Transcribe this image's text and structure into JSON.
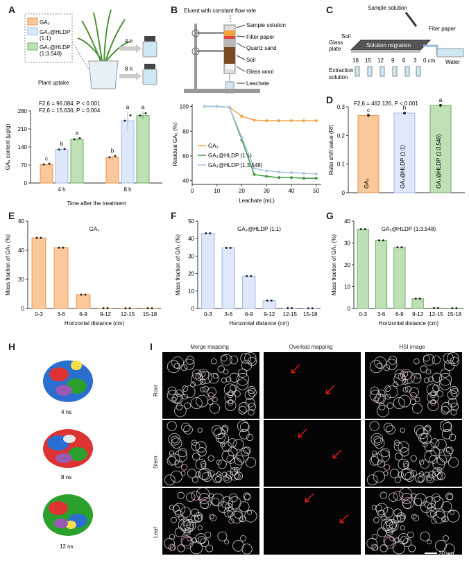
{
  "panels": {
    "A": {
      "letter": "A",
      "legend": [
        "GA₃",
        "GA₃@HLDP\n(1:1)",
        "GA₃@HLDP\n(1:3.548)"
      ],
      "plant_caption": "Plant uptake",
      "vial_times": [
        "4 h",
        "8 h"
      ],
      "stats": [
        "F2,6 = 96.084, P < 0.001",
        "F2,6 = 15.630, P = 0.004"
      ],
      "colors": {
        "ga3": "#f9c89b",
        "hldp11": "#dfe8fb",
        "hldp13": "#bfe0b4",
        "ga3_edge": "#e8944f",
        "hldp11_edge": "#9fb8e8",
        "hldp13_edge": "#6fae6a"
      }
    },
    "B": {
      "letter": "B",
      "apparatus": {
        "top": "Eluent with constant flow rate",
        "labels": [
          "Sample solution",
          "Filter paper",
          "Quartz sand",
          "Soil",
          "Glass wool",
          "Leachate"
        ]
      }
    },
    "C": {
      "letter": "C",
      "labels": {
        "sample": "Sample solution",
        "filter": "Fiter paper",
        "soil": "Soil",
        "glass": "Glass\nplate",
        "migration": "Solution migration",
        "water": "Water",
        "extraction": "Extraction\nsolution",
        "ticks": [
          "18",
          "15",
          "12",
          "9",
          "6",
          "3",
          "0 cm"
        ]
      }
    },
    "D": {
      "letter": "D"
    },
    "E": {
      "letter": "E"
    },
    "F": {
      "letter": "F"
    },
    "G": {
      "letter": "G"
    },
    "H": {
      "letter": "H",
      "times": [
        "4 ns",
        "8 ns",
        "12 ns"
      ]
    },
    "I": {
      "letter": "I",
      "columns": [
        "Merge mapping",
        "Overlaid mapping",
        "HSI image"
      ],
      "rows": [
        "Root",
        "Stem",
        "Leaf"
      ],
      "scale": "20 μm"
    }
  },
  "chart_data": [
    {
      "id": "A",
      "type": "bar",
      "categories": [
        "4 h",
        "8 h"
      ],
      "xlabel": "Time after the treatment",
      "ylabel": "GA₃ content (μg/g)",
      "ylim": [
        0,
        280
      ],
      "yticks": [
        0,
        70,
        140,
        210,
        280
      ],
      "series": [
        {
          "name": "GA₃",
          "values": [
            72,
            100
          ],
          "err": [
            5,
            8
          ],
          "letters": [
            "c",
            "b"
          ]
        },
        {
          "name": "GA₃@HLDP (1:1)",
          "values": [
            130,
            242
          ],
          "err": [
            4,
            35
          ],
          "letters": [
            "b",
            "a"
          ]
        },
        {
          "name": "GA₃@HLDP (1:3.548)",
          "values": [
            170,
            262
          ],
          "err": [
            6,
            15
          ],
          "letters": [
            "a",
            "a"
          ]
        }
      ]
    },
    {
      "id": "B",
      "type": "line",
      "xlabel": "Leachate (mL)",
      "ylabel": "Residual GA₃ (%)",
      "xlim": [
        0,
        52
      ],
      "ylim": [
        37,
        102
      ],
      "xticks": [
        0,
        10,
        20,
        30,
        40,
        50
      ],
      "yticks": [
        40,
        60,
        80,
        100
      ],
      "series": [
        {
          "name": "GA₃",
          "x": [
            5,
            10,
            15,
            20,
            25,
            30,
            35,
            40,
            45,
            50
          ],
          "y": [
            100,
            100,
            99.5,
            92,
            89,
            88.5,
            88.5,
            88.5,
            88.5,
            88.5
          ]
        },
        {
          "name": "GA₃@HLDP (1:1)",
          "x": [
            5,
            10,
            15,
            20,
            25,
            30,
            35,
            40,
            45,
            50
          ],
          "y": [
            100,
            100,
            99.5,
            73,
            45,
            43.5,
            42.5,
            42.5,
            42,
            42
          ]
        },
        {
          "name": "GA₃@HLDP (1:3.548)",
          "x": [
            5,
            10,
            15,
            20,
            25,
            30,
            35,
            40,
            45,
            50
          ],
          "y": [
            100,
            100,
            99.5,
            75,
            50,
            48,
            47,
            46.5,
            46,
            45.5
          ]
        }
      ]
    },
    {
      "id": "D",
      "type": "bar",
      "ylabel": "Ratio shift value (Rf)",
      "ylim": [
        0,
        0.3
      ],
      "yticks": [
        0,
        0.1,
        0.2,
        0.3
      ],
      "stat": "F2,6 = 462.126, P < 0.001",
      "categories": [
        "GA₃",
        "GA₃@HLDP (1:1)",
        "GA₃@HLDP (1:3.548)"
      ],
      "values": [
        0.27,
        0.278,
        0.305
      ],
      "letters": [
        "c",
        "b",
        "a"
      ]
    },
    {
      "id": "E",
      "type": "bar",
      "title": "GA₃",
      "xlabel": "Horizontal distance (cm)",
      "ylabel": "Mass fraction of GA₃ (%)",
      "ylim": [
        0,
        60
      ],
      "yticks": [
        0,
        20,
        40,
        60
      ],
      "categories": [
        "0-3",
        "3-6",
        "6-9",
        "9-12",
        "12-15",
        "15-18"
      ],
      "values": [
        48.5,
        41.8,
        9.5,
        0.2,
        0.1,
        0.1
      ]
    },
    {
      "id": "F",
      "type": "bar",
      "title": "GA₃@HLDP (1:1)",
      "xlabel": "Horizontal distance (cm)",
      "ylabel": "Mass fraction of GA₃ (%)",
      "ylim": [
        0,
        50
      ],
      "yticks": [
        0,
        10,
        20,
        30,
        40,
        50
      ],
      "categories": [
        "0-3",
        "3-6",
        "6-9",
        "9-12",
        "12-15",
        "15-18"
      ],
      "values": [
        43,
        34.7,
        18.5,
        4.5,
        0.2,
        0.1
      ]
    },
    {
      "id": "G",
      "type": "bar",
      "title": "GA₃@HLDP (1:3.548)",
      "xlabel": "Horizontal distance (cm)",
      "ylabel": "Mass fraction of GA₃ (%)",
      "ylim": [
        0,
        40
      ],
      "yticks": [
        0,
        10,
        20,
        30,
        40
      ],
      "categories": [
        "0-3",
        "3-6",
        "6-9",
        "9-12",
        "12-15",
        "15-18"
      ],
      "values": [
        36.3,
        31.2,
        28,
        4.5,
        0.2,
        0.1
      ]
    }
  ]
}
